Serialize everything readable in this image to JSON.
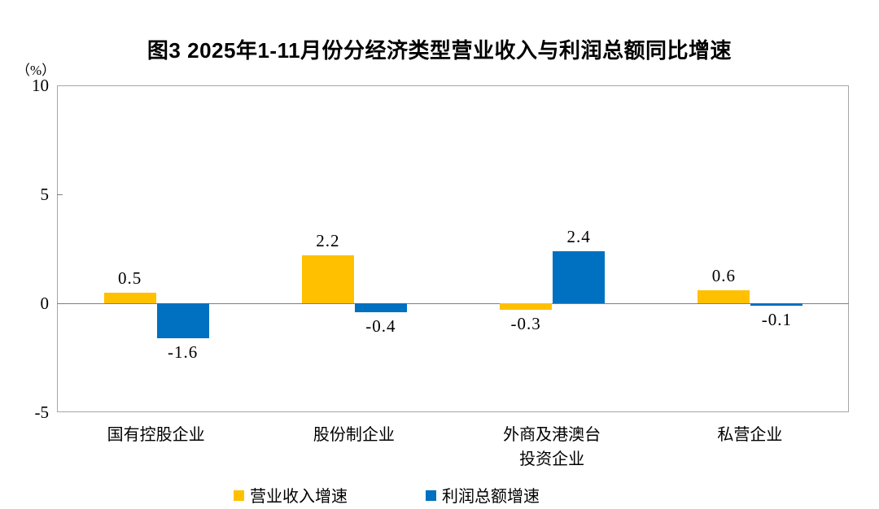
{
  "chart_data": {
    "type": "bar",
    "title": "图3  2025年1-11月份分经济类型营业收入与利润总额同比增速",
    "unit_label": "（%）",
    "categories": [
      "国有控股企业",
      "股份制企业",
      "外商及港澳台\n投资企业",
      "私营企业"
    ],
    "series": [
      {
        "name": "营业收入增速",
        "color": "#FFC000",
        "values": [
          0.5,
          2.2,
          -0.3,
          0.6
        ]
      },
      {
        "name": "利润总额增速",
        "color": "#0070C0",
        "values": [
          -1.6,
          -0.4,
          2.4,
          -0.1
        ]
      }
    ],
    "ylim": [
      -5,
      10
    ],
    "yticks": [
      10,
      5,
      0,
      -5
    ],
    "xlabel": "",
    "ylabel": "（%）",
    "legend_position": "bottom",
    "grid": false,
    "value_labels": true,
    "value_label_decimals": 1
  }
}
